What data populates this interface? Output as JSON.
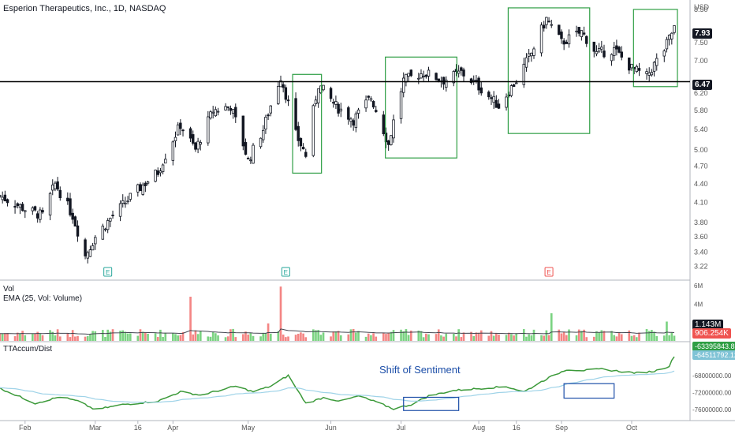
{
  "header": {
    "symbol": "Esperion Therapeutics, Inc., 1D, NASDAQ",
    "currency": "USD"
  },
  "price_axis": {
    "ticks": [
      "8.50",
      "7.93",
      "7.50",
      "7.00",
      "6.47",
      "6.20",
      "5.80",
      "5.40",
      "5.00",
      "4.70",
      "4.40",
      "4.10",
      "3.80",
      "3.60",
      "3.40",
      "3.22"
    ],
    "current_price": "7.93",
    "level_price": "6.47"
  },
  "volume_panel": {
    "label": "Vol",
    "ema_label": "EMA (25, Vol: Volume)",
    "axis_top": "6M",
    "axis_mid": "4M",
    "vol_value": "1.143M",
    "ema_value": "906.254K"
  },
  "tt_panel": {
    "label": "TTAccum/Dist",
    "value_1": "-63395843.83",
    "value_2": "-64511792.12",
    "ticks": [
      "-68000000.00",
      "-72000000.00",
      "-76000000.00"
    ],
    "annotation": "Shift of Sentiment"
  },
  "time_axis": {
    "labels": [
      "Feb",
      "Mar",
      "16",
      "Apr",
      "May",
      "Jun",
      "Jul",
      "Aug",
      "16",
      "Sep",
      "Oct"
    ]
  },
  "earnings_markers": [
    "E",
    "E",
    "E"
  ],
  "colors": {
    "up": "#26a69a",
    "down": "#131722",
    "vol_up": "#7bd382",
    "vol_down": "#f48584",
    "box": "#2e9e44",
    "accum": "#3c9a3a",
    "accum_ma": "#9fd3e8",
    "blue_box": "#1c4ea8",
    "ema": "#434651",
    "level": "#000000",
    "earn_up": "#26a69a",
    "earn_down": "#ef5350"
  },
  "chart_data": {
    "type": "candlestick",
    "level_line": 6.47,
    "y_range": [
      3.15,
      8.6
    ],
    "x_start_date": "2019-01-22",
    "x_end_date": "2019-10-18",
    "anchors": [
      [
        "2019-01-22",
        4.2
      ],
      [
        "2019-02-01",
        4.0
      ],
      [
        "2019-02-08",
        3.9
      ],
      [
        "2019-02-13",
        4.4
      ],
      [
        "2019-02-20",
        3.9
      ],
      [
        "2019-02-25",
        3.35
      ],
      [
        "2019-03-01",
        3.6
      ],
      [
        "2019-03-08",
        3.9
      ],
      [
        "2019-03-18",
        4.3
      ],
      [
        "2019-03-26",
        4.6
      ],
      [
        "2019-04-04",
        5.5
      ],
      [
        "2019-04-10",
        5.0
      ],
      [
        "2019-04-17",
        5.8
      ],
      [
        "2019-04-24",
        5.9
      ],
      [
        "2019-05-01",
        4.8
      ],
      [
        "2019-05-07",
        5.4
      ],
      [
        "2019-05-14",
        6.6
      ],
      [
        "2019-05-20",
        5.3
      ],
      [
        "2019-05-24",
        4.9
      ],
      [
        "2019-05-29",
        6.4
      ],
      [
        "2019-06-05",
        5.9
      ],
      [
        "2019-06-12",
        5.6
      ],
      [
        "2019-06-19",
        6.1
      ],
      [
        "2019-06-26",
        5.1
      ],
      [
        "2019-07-02",
        6.5
      ],
      [
        "2019-07-10",
        6.7
      ],
      [
        "2019-07-18",
        6.5
      ],
      [
        "2019-07-25",
        6.7
      ],
      [
        "2019-08-02",
        6.3
      ],
      [
        "2019-08-09",
        5.9
      ],
      [
        "2019-08-16",
        6.5
      ],
      [
        "2019-08-22",
        7.2
      ],
      [
        "2019-08-28",
        8.2
      ],
      [
        "2019-09-03",
        7.5
      ],
      [
        "2019-09-11",
        7.8
      ],
      [
        "2019-09-17",
        7.2
      ],
      [
        "2019-09-24",
        7.3
      ],
      [
        "2019-10-01",
        6.8
      ],
      [
        "2019-10-07",
        6.6
      ],
      [
        "2019-10-14",
        7.3
      ],
      [
        "2019-10-18",
        7.93
      ]
    ],
    "green_boxes": [
      {
        "from": "2019-05-20",
        "to": "2019-05-29",
        "low": 4.58,
        "high": 6.65
      },
      {
        "from": "2019-06-26",
        "to": "2019-07-22",
        "low": 4.85,
        "high": 7.1
      },
      {
        "from": "2019-08-14",
        "to": "2019-09-13",
        "low": 5.32,
        "high": 8.55
      },
      {
        "from": "2019-10-03",
        "to": "2019-10-18",
        "low": 6.35,
        "high": 8.5
      }
    ],
    "accum_range": [
      -78000000,
      -61000000
    ],
    "accum_anchors": [
      [
        "2019-01-22",
        -71000000
      ],
      [
        "2019-02-05",
        -74500000
      ],
      [
        "2019-02-15",
        -73000000
      ],
      [
        "2019-02-22",
        -74000000
      ],
      [
        "2019-03-01",
        -76000000
      ],
      [
        "2019-03-12",
        -74800000
      ],
      [
        "2019-03-26",
        -74000000
      ],
      [
        "2019-04-04",
        -71800000
      ],
      [
        "2019-04-12",
        -72600000
      ],
      [
        "2019-04-26",
        -70500000
      ],
      [
        "2019-05-03",
        -71800000
      ],
      [
        "2019-05-10",
        -70500000
      ],
      [
        "2019-05-17",
        -68000000
      ],
      [
        "2019-05-24",
        -74500000
      ],
      [
        "2019-05-31",
        -73200000
      ],
      [
        "2019-06-07",
        -74000000
      ],
      [
        "2019-06-14",
        -72800000
      ],
      [
        "2019-06-21",
        -74200000
      ],
      [
        "2019-06-28",
        -75800000
      ],
      [
        "2019-07-05",
        -74800000
      ],
      [
        "2019-07-12",
        -72800000
      ],
      [
        "2019-07-22",
        -71500000
      ],
      [
        "2019-08-02",
        -71000000
      ],
      [
        "2019-08-12",
        -70600000
      ],
      [
        "2019-08-19",
        -71800000
      ],
      [
        "2019-08-23",
        -70500000
      ],
      [
        "2019-08-28",
        -68800000
      ],
      [
        "2019-09-05",
        -66600000
      ],
      [
        "2019-09-12",
        -66800000
      ],
      [
        "2019-09-19",
        -66500000
      ],
      [
        "2019-09-26",
        -67000000
      ],
      [
        "2019-10-03",
        -67400000
      ],
      [
        "2019-10-10",
        -67000000
      ],
      [
        "2019-10-16",
        -65800000
      ],
      [
        "2019-10-18",
        -63400000
      ]
    ],
    "blue_boxes": [
      {
        "from": "2019-07-02",
        "to": "2019-07-24",
        "low": -76200000,
        "high": -73100000
      },
      {
        "from": "2019-09-04",
        "to": "2019-09-24",
        "low": -73300000,
        "high": -69900000
      }
    ],
    "volume_spikes": [
      {
        "date": "2019-04-08",
        "value": 4.8,
        "dir": "down"
      },
      {
        "date": "2019-05-14",
        "value": 5.9,
        "dir": "down"
      },
      {
        "date": "2019-05-09",
        "value": 1.9,
        "dir": "down"
      },
      {
        "date": "2019-08-30",
        "value": 3.0,
        "dir": "up"
      },
      {
        "date": "2019-10-15",
        "value": 2.1,
        "dir": "up"
      }
    ],
    "volume_max": 6,
    "earnings_dates": [
      {
        "date": "2019-03-06",
        "dir": "up"
      },
      {
        "date": "2019-05-16",
        "dir": "up"
      },
      {
        "date": "2019-08-29",
        "dir": "down"
      }
    ]
  }
}
